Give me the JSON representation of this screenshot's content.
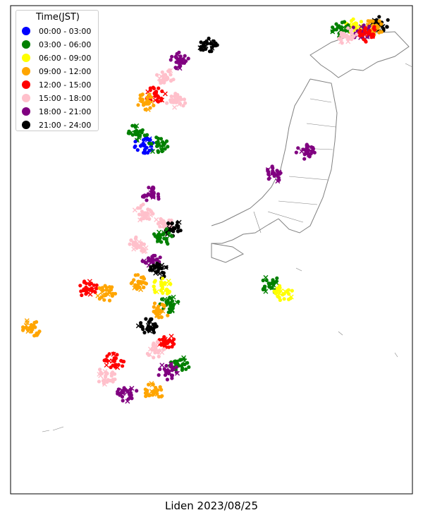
{
  "chart_data": {
    "type": "scatter",
    "title": "Liden 2023/08/25",
    "legend": {
      "title": "Time(JST)",
      "placement": "top-left",
      "entries": [
        {
          "label": "00:00 - 03:00",
          "color": "#0000ff"
        },
        {
          "label": "03:00 - 06:00",
          "color": "#008000"
        },
        {
          "label": "06:00 - 09:00",
          "color": "#ffff00"
        },
        {
          "label": "09:00 - 12:00",
          "color": "#ffa500"
        },
        {
          "label": "12:00 - 15:00",
          "color": "#ff0000"
        },
        {
          "label": "15:00 - 18:00",
          "color": "#ffc0cb"
        },
        {
          "label": "18:00 - 21:00",
          "color": "#800080"
        },
        {
          "label": "21:00 - 24:00",
          "color": "#000000"
        }
      ]
    },
    "grid": false,
    "marker_types": [
      "dot",
      "x"
    ],
    "base_map": "Japan prefecture outlines (gray)",
    "clusters": [
      {
        "lon": 145.2,
        "lat": 45.2,
        "color": "#000000"
      },
      {
        "lon": 144.8,
        "lat": 45.0,
        "color": "#ffa500"
      },
      {
        "lon": 143.5,
        "lat": 45.1,
        "color": "#ffff00"
      },
      {
        "lon": 142.6,
        "lat": 44.9,
        "color": "#008000"
      },
      {
        "lon": 144.0,
        "lat": 44.8,
        "color": "#800080"
      },
      {
        "lon": 143.0,
        "lat": 44.6,
        "color": "#ffc0cb"
      },
      {
        "lon": 144.5,
        "lat": 44.7,
        "color": "#ff0000"
      },
      {
        "lon": 133.0,
        "lat": 44.2,
        "color": "#000000"
      },
      {
        "lon": 131.0,
        "lat": 43.5,
        "color": "#800080"
      },
      {
        "lon": 130.0,
        "lat": 42.7,
        "color": "#ffc0cb"
      },
      {
        "lon": 129.3,
        "lat": 41.9,
        "color": "#ff0000"
      },
      {
        "lon": 128.7,
        "lat": 41.6,
        "color": "#ffa500"
      },
      {
        "lon": 130.8,
        "lat": 41.6,
        "color": "#ffc0cb"
      },
      {
        "lon": 128.1,
        "lat": 40.2,
        "color": "#008000"
      },
      {
        "lon": 128.5,
        "lat": 39.6,
        "color": "#0000ff"
      },
      {
        "lon": 129.5,
        "lat": 39.6,
        "color": "#008000"
      },
      {
        "lon": 140.0,
        "lat": 39.3,
        "color": "#800080"
      },
      {
        "lon": 137.8,
        "lat": 38.3,
        "color": "#800080"
      },
      {
        "lon": 129.0,
        "lat": 37.3,
        "color": "#800080"
      },
      {
        "lon": 128.5,
        "lat": 36.5,
        "color": "#ffc0cb"
      },
      {
        "lon": 129.8,
        "lat": 36.0,
        "color": "#ffc0cb"
      },
      {
        "lon": 130.6,
        "lat": 35.8,
        "color": "#000000"
      },
      {
        "lon": 129.8,
        "lat": 35.4,
        "color": "#008000"
      },
      {
        "lon": 128.1,
        "lat": 35.0,
        "color": "#ffc0cb"
      },
      {
        "lon": 129.0,
        "lat": 34.3,
        "color": "#800080"
      },
      {
        "lon": 129.5,
        "lat": 33.8,
        "color": "#000000"
      },
      {
        "lon": 128.2,
        "lat": 33.3,
        "color": "#ffa500"
      },
      {
        "lon": 129.8,
        "lat": 33.1,
        "color": "#ffff00"
      },
      {
        "lon": 130.3,
        "lat": 32.3,
        "color": "#008000"
      },
      {
        "lon": 129.6,
        "lat": 32.0,
        "color": "#ffa500"
      },
      {
        "lon": 128.8,
        "lat": 31.3,
        "color": "#000000"
      },
      {
        "lon": 130.0,
        "lat": 30.6,
        "color": "#ff0000"
      },
      {
        "lon": 129.3,
        "lat": 30.2,
        "color": "#ffc0cb"
      },
      {
        "lon": 131.0,
        "lat": 29.5,
        "color": "#008000"
      },
      {
        "lon": 130.2,
        "lat": 29.2,
        "color": "#800080"
      },
      {
        "lon": 126.4,
        "lat": 29.7,
        "color": "#ff0000"
      },
      {
        "lon": 125.8,
        "lat": 29.0,
        "color": "#ffc0cb"
      },
      {
        "lon": 127.3,
        "lat": 28.2,
        "color": "#800080"
      },
      {
        "lon": 129.2,
        "lat": 28.3,
        "color": "#ffa500"
      },
      {
        "lon": 137.5,
        "lat": 33.2,
        "color": "#008000"
      },
      {
        "lon": 138.4,
        "lat": 32.8,
        "color": "#ffff00"
      },
      {
        "lon": 120.5,
        "lat": 31.2,
        "color": "#ffa500"
      },
      {
        "lon": 124.5,
        "lat": 33.0,
        "color": "#ff0000"
      },
      {
        "lon": 125.8,
        "lat": 32.8,
        "color": "#ffa500"
      }
    ]
  }
}
